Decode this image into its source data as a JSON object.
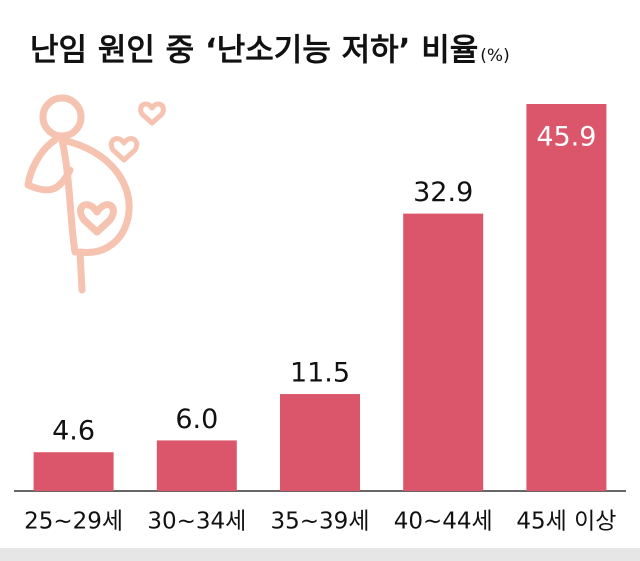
{
  "chart_data": {
    "type": "bar",
    "title": "난임 원인 중 ‘난소기능 저하’ 비율",
    "unit": "(%)",
    "categories": [
      "25~29세",
      "30~34세",
      "35~39세",
      "40~44세",
      "45세 이상"
    ],
    "values": [
      4.6,
      6.0,
      11.5,
      32.9,
      45.9
    ],
    "value_labels": [
      "4.6",
      "6.0",
      "11.5",
      "32.9",
      "45.9"
    ],
    "color": "#dc566b"
  }
}
